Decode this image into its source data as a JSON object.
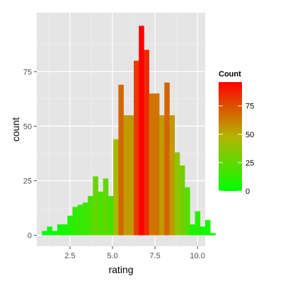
{
  "chart_data": {
    "type": "bar",
    "subtype": "histogram",
    "xlabel": "rating",
    "ylabel": "count",
    "xlim": [
      0.55,
      10.45
    ],
    "ylim": [
      -5,
      102
    ],
    "x_ticks": [
      2.5,
      5.0,
      7.5,
      10.0
    ],
    "x_tick_labels": [
      "2.5",
      "5.0",
      "7.5",
      "10.0"
    ],
    "y_ticks": [
      0,
      25,
      50,
      75
    ],
    "y_tick_labels": [
      "0",
      "25",
      "50",
      "75"
    ],
    "grid": true,
    "panel_background": "#e5e5e5",
    "bins": {
      "x_start": 1.0,
      "bin_width": 0.3,
      "counts": [
        2,
        4,
        2,
        5,
        5,
        9,
        13,
        14,
        15,
        18,
        27,
        20,
        26,
        18,
        44,
        69,
        55,
        55,
        80,
        96,
        85,
        65,
        65,
        55,
        70,
        55,
        38,
        32,
        22,
        5,
        11,
        4,
        7,
        1
      ]
    },
    "fill_gradient": {
      "low": "#00ff00",
      "high": "#ff0000"
    },
    "legend": {
      "title": "Count",
      "placement": "right",
      "ticks": [
        0,
        25,
        50,
        75
      ],
      "tick_labels": [
        "0",
        "25",
        "50",
        "75"
      ],
      "range": [
        0,
        96
      ]
    }
  }
}
